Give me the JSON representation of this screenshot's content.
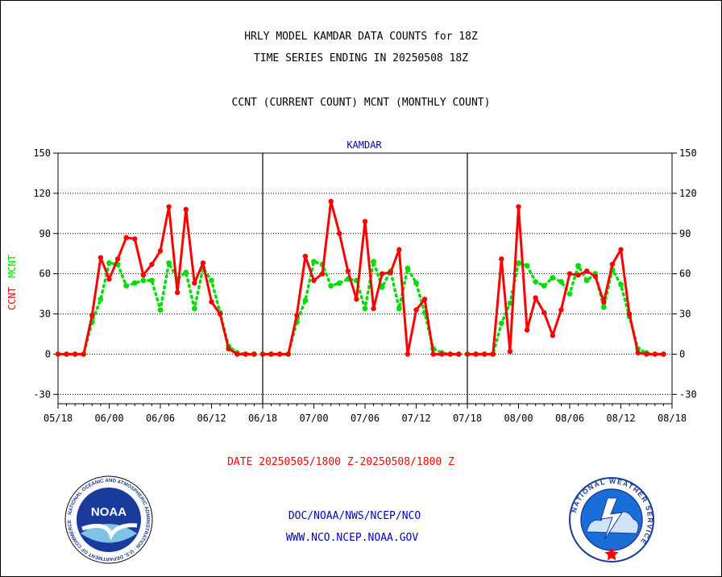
{
  "header": {
    "title_line1": "HRLY MODEL KAMDAR DATA COUNTS for 18Z",
    "title_line2": "TIME SERIES ENDING IN 20250508 18Z",
    "subtitle": "CCNT (CURRENT COUNT) MCNT (MONTHLY COUNT)"
  },
  "footer": {
    "date_range": "DATE 20250505/1800 Z-20250508/1800 Z",
    "org": "DOC/NOAA/NWS/NCEP/NCO",
    "website": "WWW.NCO.NCEP.NOAA.GOV"
  },
  "logos": {
    "noaa": "NOAA",
    "noaa_ring": "NATIONAL OCEANIC AND ATMOSPHERIC ADMINISTRATION · U.S. DEPARTMENT OF COMMERCE",
    "nws_ring": "NATIONAL WEATHER SERVICE"
  },
  "colors": {
    "ccnt": "#ff0000",
    "mcnt": "#00dd00",
    "axis": "#000000",
    "title_blue": "#0000cc"
  },
  "chart_data": {
    "type": "line",
    "title": "KAMDAR",
    "ylabel_parts": [
      "CCNT",
      "MCNT"
    ],
    "ylim": [
      -37,
      150
    ],
    "yticks": [
      -30,
      0,
      30,
      60,
      90,
      120,
      150
    ],
    "grid": true,
    "grid_style": "dotted horizontal",
    "x_unit": "hour index, 3 panels of 24 hourly points (00Z-23Z, shown as 18Z-18Z)",
    "panels": [
      {
        "xtick_labels": [
          "05/18",
          "06/00",
          "06/06",
          "06/12",
          "06/18"
        ],
        "series": [
          {
            "name": "CCNT",
            "values": [
              0,
              0,
              0,
              0,
              29,
              72,
              56,
              71,
              87,
              86,
              59,
              67,
              77,
              110,
              46,
              108,
              53,
              68,
              39,
              30,
              4,
              0,
              0,
              0
            ]
          },
          {
            "name": "MCNT",
            "values": [
              0,
              0,
              0,
              0,
              24,
              41,
              68,
              67,
              51,
              53,
              55,
              55,
              33,
              68,
              56,
              61,
              34,
              64,
              55,
              31,
              6,
              1,
              0,
              0
            ]
          }
        ]
      },
      {
        "xtick_labels": [
          "06/18",
          "07/00",
          "07/06",
          "07/12",
          "07/18"
        ],
        "series": [
          {
            "name": "CCNT",
            "values": [
              0,
              0,
              0,
              0,
              29,
              73,
              55,
              60,
              114,
              90,
              62,
              41,
              99,
              34,
              60,
              61,
              78,
              0,
              33,
              41,
              0,
              0,
              0,
              0
            ]
          },
          {
            "name": "MCNT",
            "values": [
              0,
              0,
              0,
              0,
              24,
              40,
              69,
              67,
              51,
              53,
              56,
              55,
              34,
              69,
              50,
              62,
              34,
              64,
              53,
              31,
              4,
              1,
              0,
              0
            ]
          }
        ]
      },
      {
        "xtick_labels": [
          "07/18",
          "08/00",
          "08/06",
          "08/12",
          "08/18"
        ],
        "series": [
          {
            "name": "CCNT",
            "values": [
              0,
              0,
              0,
              0,
              71,
              2,
              110,
              18,
              42,
              31,
              14,
              33,
              60,
              59,
              62,
              58,
              39,
              67,
              78,
              30,
              1,
              0,
              0,
              0
            ]
          },
          {
            "name": "MCNT",
            "values": [
              0,
              0,
              0,
              0,
              23,
              38,
              68,
              66,
              54,
              51,
              57,
              54,
              45,
              66,
              55,
              60,
              35,
              63,
              52,
              28,
              4,
              1,
              0,
              0
            ]
          }
        ]
      }
    ]
  }
}
